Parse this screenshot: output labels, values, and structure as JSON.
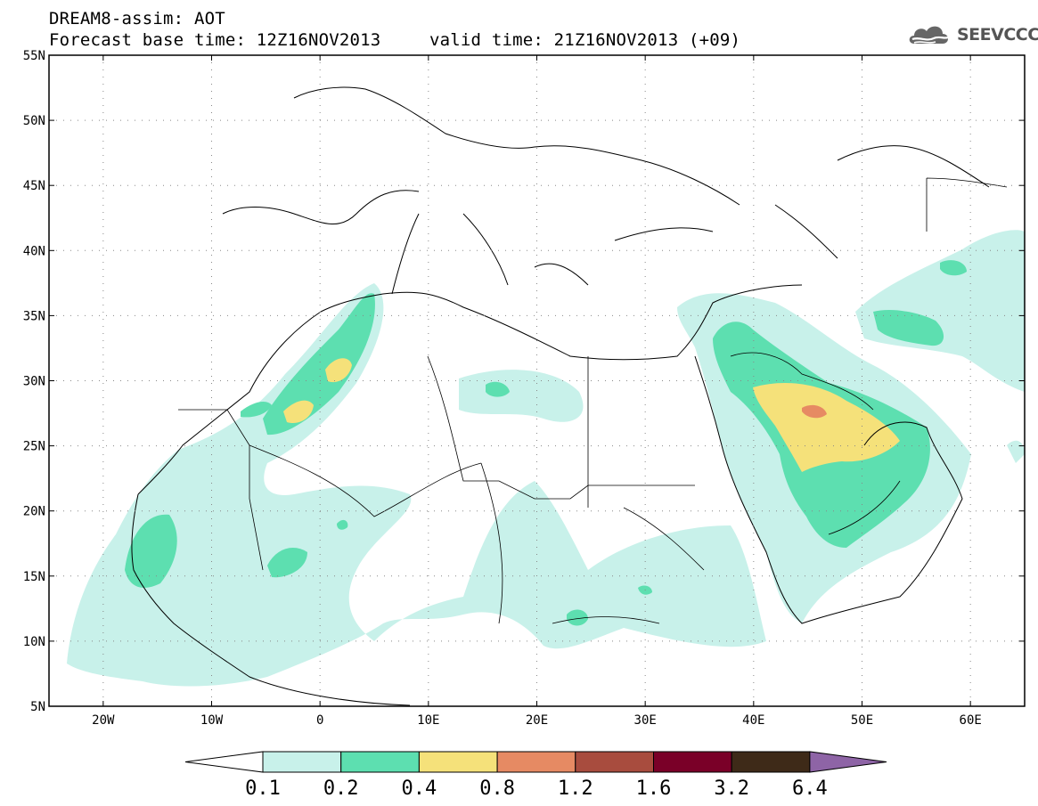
{
  "header": {
    "line1": "DREAM8-assim: AOT",
    "base_time": "Forecast base time: 12Z16NOV2013",
    "valid_time": "valid time: 21Z16NOV2013 (+09)",
    "logo_text": "SEEVCCC"
  },
  "map": {
    "lon_range": [
      -25,
      65
    ],
    "lat_range": [
      5,
      55
    ],
    "lon_ticks": [
      "20W",
      "10W",
      "0",
      "10E",
      "20E",
      "30E",
      "40E",
      "50E",
      "60E"
    ],
    "lon_tick_values": [
      -20,
      -10,
      0,
      10,
      20,
      30,
      40,
      50,
      60
    ],
    "lat_ticks": [
      "5N",
      "10N",
      "15N",
      "20N",
      "25N",
      "30N",
      "35N",
      "40N",
      "45N",
      "50N",
      "55N"
    ],
    "lat_tick_values": [
      5,
      10,
      15,
      20,
      25,
      30,
      35,
      40,
      45,
      50,
      55
    ],
    "grid": "dotted"
  },
  "colorbar": {
    "labels": [
      "0.1",
      "0.2",
      "0.4",
      "0.8",
      "1.2",
      "1.6",
      "3.2",
      "6.4"
    ],
    "colors": [
      "#c8f1ea",
      "#5ddfb0",
      "#f5e17a",
      "#e68a63",
      "#a84c3e",
      "#7a0028",
      "#3e2a18",
      "#8e64a6"
    ],
    "low_color": "#ffffff"
  },
  "levels": {
    "l1": "#c8f1ea",
    "l2": "#5ddfb0",
    "l3": "#f5e17a",
    "l4": "#e68a63"
  }
}
